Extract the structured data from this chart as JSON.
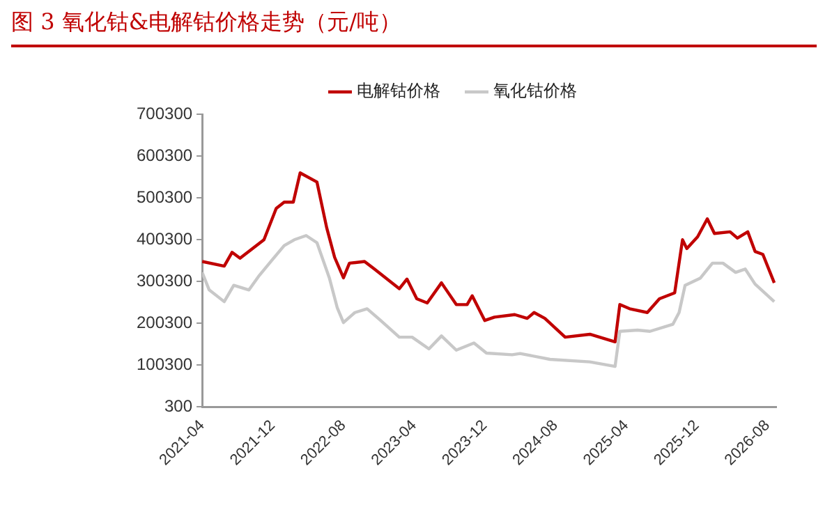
{
  "chart_data": {
    "type": "line",
    "title": "图 3 氧化钴&电解钴价格走势（元/吨）",
    "series": [
      {
        "name": "电解钴价格",
        "color": "#c00000",
        "x": [
          "2021-04-01",
          "2021-06-16",
          "2021-07-13",
          "2021-08-10",
          "2021-11-01",
          "2021-12-13",
          "2022-01-10",
          "2022-02-10",
          "2022-03-04",
          "2022-05-01",
          "2022-06-04",
          "2022-07-01",
          "2022-08-01",
          "2022-08-22",
          "2022-10-13",
          "2022-11-16",
          "2023-02-10",
          "2023-03-07",
          "2023-04-10",
          "2023-05-16",
          "2023-07-04",
          "2023-08-25",
          "2023-10-01",
          "2023-10-19",
          "2023-12-01",
          "2024-01-04",
          "2024-03-13",
          "2024-04-25",
          "2024-05-19",
          "2024-06-25",
          "2024-09-04",
          "2024-11-28",
          "2025-02-22",
          "2025-03-10",
          "2025-04-13",
          "2025-06-13",
          "2025-07-25",
          "2025-09-16",
          "2025-10-13",
          "2025-10-28",
          "2025-12-04",
          "2026-01-07",
          "2026-02-01",
          "2026-03-25",
          "2026-04-19",
          "2026-05-25",
          "2026-06-19",
          "2026-07-16",
          "2026-08-25"
        ],
        "values": [
          348000,
          337000,
          370000,
          356000,
          400000,
          475000,
          490000,
          490000,
          560000,
          538000,
          429000,
          358000,
          309000,
          344000,
          348000,
          330000,
          283000,
          306000,
          259000,
          249000,
          297000,
          245000,
          245000,
          266000,
          207000,
          215000,
          221000,
          212000,
          226000,
          212000,
          167000,
          174000,
          156000,
          245000,
          235000,
          226000,
          259000,
          273000,
          400000,
          379000,
          407000,
          450000,
          415000,
          419000,
          404000,
          419000,
          372000,
          365000,
          297000
        ]
      },
      {
        "name": "氧化钴价格",
        "color": "#c8c8c8",
        "x": [
          "2021-04-01",
          "2021-04-25",
          "2021-06-16",
          "2021-07-19",
          "2021-09-10",
          "2021-10-16",
          "2021-11-28",
          "2022-01-10",
          "2022-02-13",
          "2022-03-25",
          "2022-05-01",
          "2022-06-13",
          "2022-07-10",
          "2022-08-01",
          "2022-09-10",
          "2022-10-22",
          "2022-12-04",
          "2023-02-10",
          "2023-03-25",
          "2023-05-22",
          "2023-07-04",
          "2023-08-25",
          "2023-10-25",
          "2023-12-07",
          "2024-03-04",
          "2024-04-01",
          "2024-07-13",
          "2024-11-28",
          "2025-02-22",
          "2025-03-10",
          "2025-05-10",
          "2025-06-22",
          "2025-09-10",
          "2025-10-01",
          "2025-10-22",
          "2025-12-13",
          "2026-01-25",
          "2026-02-28",
          "2026-04-13",
          "2026-05-16",
          "2026-06-19",
          "2026-08-25"
        ],
        "values": [
          322000,
          280000,
          252000,
          291000,
          280000,
          315000,
          351000,
          386000,
          400000,
          410000,
          393000,
          309000,
          238000,
          202000,
          226000,
          235000,
          209000,
          167000,
          167000,
          139000,
          170000,
          136000,
          153000,
          129000,
          125000,
          128000,
          114000,
          108000,
          97000,
          181000,
          184000,
          181000,
          198000,
          226000,
          291000,
          308000,
          344000,
          344000,
          322000,
          330000,
          294000,
          252000
        ]
      }
    ],
    "xlim": [
      "2021-04",
      "2026-09"
    ],
    "xticks": [
      "2021-04",
      "2021-12",
      "2022-08",
      "2023-04",
      "2023-12",
      "2024-08",
      "2025-04",
      "2025-12",
      "2026-08"
    ],
    "ylim": [
      300,
      700300
    ],
    "yticks": [
      300,
      100300,
      200300,
      300300,
      400300,
      500300,
      600300,
      700300
    ],
    "legend": "top",
    "grid": false,
    "marker": "none",
    "line_style": "solid"
  }
}
